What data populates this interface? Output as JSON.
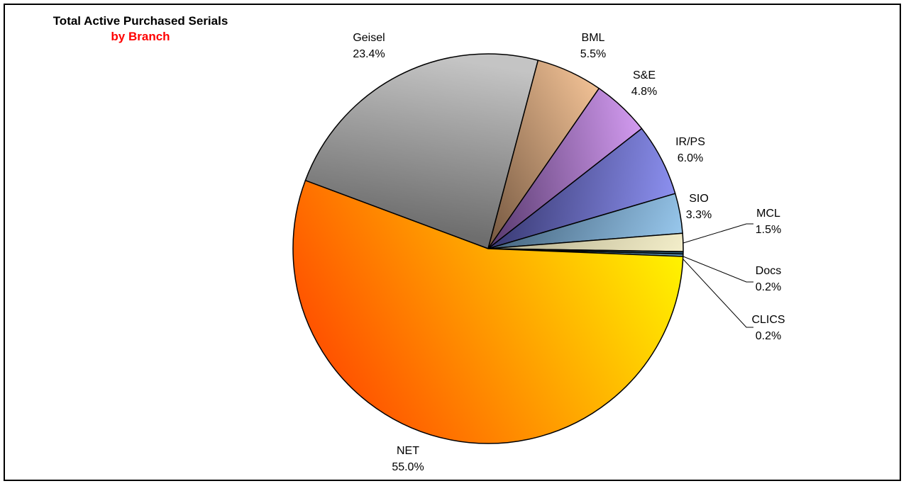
{
  "chart_data": {
    "type": "pie",
    "title": "Total Active Purchased Serials",
    "subtitle": "by Branch",
    "slices": [
      {
        "name": "Geisel",
        "label": "23.4%",
        "value": 23.4,
        "color_light": "#c4c4c4",
        "color_dark": "#6e6e6e"
      },
      {
        "name": "BML",
        "label": "5.5%",
        "value": 5.5,
        "color_light": "#f6c598",
        "color_dark": "#7a5c44"
      },
      {
        "name": "S&E",
        "label": "4.8%",
        "value": 4.8,
        "color_light": "#d9a0f7",
        "color_dark": "#5c3d72"
      },
      {
        "name": "IR/PS",
        "label": "6.0%",
        "value": 6.0,
        "color_light": "#8f93f4",
        "color_dark": "#3c3d78"
      },
      {
        "name": "SIO",
        "label": "3.3%",
        "value": 3.3,
        "color_light": "#9fd0f6",
        "color_dark": "#4a6a84"
      },
      {
        "name": "MCL",
        "label": "1.5%",
        "value": 1.5,
        "color_light": "#fbf6d2",
        "color_dark": "#b8b28f"
      },
      {
        "name": "Docs",
        "label": "0.2%",
        "value": 0.2,
        "color_light": "#2e5f7a",
        "color_dark": "#1c3a4a"
      },
      {
        "name": "CLICS",
        "label": "0.2%",
        "value": 0.2,
        "color_light": "#6fb0d8",
        "color_dark": "#3b6d8a"
      },
      {
        "name": "NET",
        "label": "55.0%",
        "value": 55.0,
        "color_light": "#ffff00",
        "color_dark": "#ff5500"
      }
    ],
    "legend": "none"
  }
}
